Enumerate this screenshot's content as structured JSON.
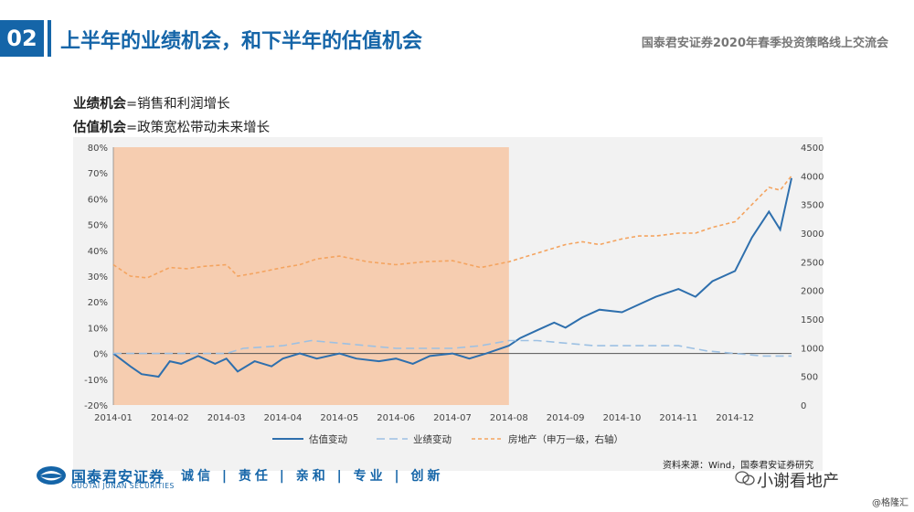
{
  "header": {
    "slide_number": "02",
    "title": "上半年的业绩机会，和下半年的估值机会",
    "event": "国泰君安证券2020年春季投资策略线上交流会"
  },
  "definitions": [
    {
      "term": "业绩机会",
      "text": "=销售和利润增长"
    },
    {
      "term": "估值机会",
      "text": "=政策宽松带动未来增长"
    }
  ],
  "colors": {
    "brand": "#1565a8",
    "shade": "#f6cdb0",
    "valuation": "#2e6fad",
    "earnings": "#9cc0e3",
    "property": "#f4a460"
  },
  "chart_data": {
    "type": "line",
    "x_labels": [
      "2014-01",
      "2014-02",
      "2014-03",
      "2014-04",
      "2014-05",
      "2014-06",
      "2014-07",
      "2014-08",
      "2014-09",
      "2014-10",
      "2014-11",
      "2014-12"
    ],
    "left_axis": {
      "ticks": [
        "80%",
        "70%",
        "60%",
        "50%",
        "40%",
        "30%",
        "20%",
        "10%",
        "0%",
        "-10%",
        "-20%"
      ],
      "ylim": [
        -0.2,
        0.8
      ]
    },
    "right_axis": {
      "ticks": [
        "4500",
        "4000",
        "3500",
        "3000",
        "2500",
        "2000",
        "1500",
        "1000",
        "500",
        "0"
      ],
      "ylim": [
        0,
        4500
      ]
    },
    "shaded_region": {
      "from": "2014-01",
      "to": "2014-07-31"
    },
    "legend_position": "bottom",
    "series": [
      {
        "name": "估值变动",
        "axis": "left",
        "style": "solid",
        "x": [
          0,
          0.3,
          0.5,
          0.8,
          1.0,
          1.2,
          1.5,
          1.8,
          2.0,
          2.2,
          2.5,
          2.8,
          3.0,
          3.3,
          3.6,
          4.0,
          4.3,
          4.7,
          5.0,
          5.3,
          5.6,
          6.0,
          6.3,
          6.6,
          7.0,
          7.2,
          7.5,
          7.8,
          8.0,
          8.3,
          8.6,
          9.0,
          9.3,
          9.6,
          10.0,
          10.3,
          10.6,
          11.0,
          11.3,
          11.6,
          11.8,
          12.0
        ],
        "y": [
          0.0,
          -0.05,
          -0.08,
          -0.09,
          -0.03,
          -0.04,
          -0.01,
          -0.04,
          -0.02,
          -0.07,
          -0.03,
          -0.05,
          -0.02,
          0.0,
          -0.02,
          0.0,
          -0.02,
          -0.03,
          -0.02,
          -0.04,
          -0.01,
          0.0,
          -0.02,
          0.0,
          0.03,
          0.06,
          0.09,
          0.12,
          0.1,
          0.14,
          0.17,
          0.16,
          0.19,
          0.22,
          0.25,
          0.22,
          0.28,
          0.32,
          0.45,
          0.55,
          0.48,
          0.68
        ]
      },
      {
        "name": "业绩变动",
        "axis": "left",
        "style": "dashed",
        "x": [
          0,
          1.0,
          2.0,
          2.3,
          3.0,
          3.5,
          4.0,
          5.0,
          6.0,
          6.5,
          7.0,
          7.5,
          8.0,
          8.5,
          9.0,
          9.5,
          10.0,
          10.5,
          11.0,
          11.5,
          12.0
        ],
        "y": [
          0.0,
          0.0,
          0.0,
          0.02,
          0.03,
          0.05,
          0.04,
          0.02,
          0.02,
          0.03,
          0.05,
          0.05,
          0.04,
          0.03,
          0.03,
          0.03,
          0.03,
          0.01,
          0.0,
          -0.01,
          -0.01
        ]
      },
      {
        "name": "房地产（申万一级，右轴）",
        "axis": "right",
        "style": "dashed",
        "x": [
          0,
          0.3,
          0.6,
          1.0,
          1.3,
          1.6,
          2.0,
          2.2,
          2.5,
          3.0,
          3.3,
          3.6,
          4.0,
          4.5,
          5.0,
          5.5,
          6.0,
          6.5,
          7.0,
          7.5,
          8.0,
          8.3,
          8.6,
          9.0,
          9.3,
          9.6,
          10.0,
          10.3,
          10.6,
          11.0,
          11.3,
          11.6,
          11.8,
          12.0
        ],
        "y": [
          2450,
          2250,
          2220,
          2400,
          2380,
          2420,
          2450,
          2250,
          2300,
          2400,
          2450,
          2550,
          2600,
          2500,
          2450,
          2500,
          2520,
          2400,
          2500,
          2650,
          2800,
          2850,
          2800,
          2900,
          2950,
          2950,
          3000,
          3000,
          3100,
          3200,
          3500,
          3800,
          3750,
          4000
        ]
      }
    ]
  },
  "footer": {
    "logo_text": "国泰君安证券",
    "logo_sub": "GUOTAI JUNAN SECURITIES",
    "motto": "诚信 | 责任 | 亲和 | 专业 | 创新",
    "source": "资料来源：Wind，国泰君安证券研究",
    "wechat": "小谢看地产",
    "watermark": "@格隆汇"
  }
}
